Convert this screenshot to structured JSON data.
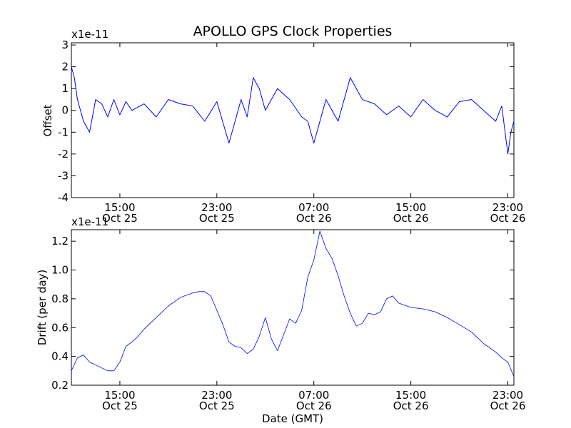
{
  "figure": {
    "title": "APOLLO GPS Clock Properties",
    "xlabel": "Date (GMT)"
  },
  "chart_data": [
    {
      "type": "line",
      "ylabel": "Offset",
      "y_multiplier_label": "x1e-11",
      "ylim": [
        -4,
        3.1
      ],
      "yticks": [
        -4,
        -3,
        -2,
        -1,
        0,
        1,
        2,
        3
      ],
      "xlim": [
        "2013-10-25T11:00",
        "2013-10-26T23:30"
      ],
      "xticks": [
        {
          "at": "2013-10-25T15:00",
          "time": "15:00",
          "date": "Oct 25"
        },
        {
          "at": "2013-10-25T23:00",
          "time": "23:00",
          "date": "Oct 25"
        },
        {
          "at": "2013-10-26T07:00",
          "time": "07:00",
          "date": "Oct 26"
        },
        {
          "at": "2013-10-26T15:00",
          "time": "15:00",
          "date": "Oct 26"
        },
        {
          "at": "2013-10-26T23:00",
          "time": "23:00",
          "date": "Oct 26"
        }
      ],
      "color": "#0000ff",
      "series": [
        {
          "x": [
            "2013-10-25T11:00",
            "2013-10-25T11:15",
            "2013-10-25T11:30",
            "2013-10-25T12:00",
            "2013-10-25T12:30",
            "2013-10-25T13:00",
            "2013-10-25T13:30",
            "2013-10-25T14:00",
            "2013-10-25T14:30",
            "2013-10-25T15:00",
            "2013-10-25T15:30",
            "2013-10-25T16:00",
            "2013-10-25T17:00",
            "2013-10-25T18:00",
            "2013-10-25T19:00",
            "2013-10-25T20:00",
            "2013-10-25T21:00",
            "2013-10-25T22:00",
            "2013-10-25T23:00",
            "2013-10-26T00:00",
            "2013-10-26T01:00",
            "2013-10-26T01:30",
            "2013-10-26T02:00",
            "2013-10-26T02:30",
            "2013-10-26T03:00",
            "2013-10-26T04:00",
            "2013-10-26T05:00",
            "2013-10-26T06:00",
            "2013-10-26T06:30",
            "2013-10-26T07:00",
            "2013-10-26T08:00",
            "2013-10-26T09:00",
            "2013-10-26T10:00",
            "2013-10-26T11:00",
            "2013-10-26T12:00",
            "2013-10-26T13:00",
            "2013-10-26T14:00",
            "2013-10-26T15:00",
            "2013-10-26T16:00",
            "2013-10-26T17:00",
            "2013-10-26T18:00",
            "2013-10-26T19:00",
            "2013-10-26T20:00",
            "2013-10-26T21:00",
            "2013-10-26T22:00",
            "2013-10-26T22:30",
            "2013-10-26T23:00",
            "2013-10-26T23:15",
            "2013-10-26T23:30"
          ],
          "y": [
            2.0,
            1.5,
            0.5,
            -0.5,
            -1.0,
            0.5,
            0.3,
            -0.3,
            0.5,
            -0.2,
            0.4,
            0.0,
            0.3,
            -0.3,
            0.5,
            0.3,
            0.2,
            -0.5,
            0.4,
            -1.5,
            0.5,
            -0.3,
            1.5,
            1.0,
            0.0,
            1.0,
            0.5,
            -0.3,
            -0.5,
            -1.5,
            0.5,
            -0.5,
            1.5,
            0.5,
            0.3,
            -0.2,
            0.2,
            -0.3,
            0.5,
            0.0,
            -0.3,
            0.4,
            0.5,
            0.0,
            -0.5,
            0.2,
            -2.0,
            -1.0,
            -0.5
          ]
        }
      ]
    },
    {
      "type": "line",
      "ylabel": "Drift (per day)",
      "y_multiplier_label": "x1e-11",
      "ylim": [
        0.2,
        1.28
      ],
      "yticks": [
        0.2,
        0.4,
        0.6,
        0.8,
        1.0,
        1.2
      ],
      "ytick_labels": [
        "0.2",
        "0.4",
        "0.6",
        "0.8",
        "1.0",
        "1.2"
      ],
      "xlim": [
        "2013-10-25T11:00",
        "2013-10-26T23:30"
      ],
      "xticks": [
        {
          "at": "2013-10-25T15:00",
          "time": "15:00",
          "date": "Oct 25"
        },
        {
          "at": "2013-10-25T23:00",
          "time": "23:00",
          "date": "Oct 25"
        },
        {
          "at": "2013-10-26T07:00",
          "time": "07:00",
          "date": "Oct 26"
        },
        {
          "at": "2013-10-26T15:00",
          "time": "15:00",
          "date": "Oct 26"
        },
        {
          "at": "2013-10-26T23:00",
          "time": "23:00",
          "date": "Oct 26"
        }
      ],
      "color": "#0000ff",
      "series": [
        {
          "x": [
            "2013-10-25T11:00",
            "2013-10-25T11:30",
            "2013-10-25T12:00",
            "2013-10-25T12:30",
            "2013-10-25T13:00",
            "2013-10-25T13:30",
            "2013-10-25T14:00",
            "2013-10-25T14:30",
            "2013-10-25T15:00",
            "2013-10-25T15:30",
            "2013-10-25T16:00",
            "2013-10-25T16:30",
            "2013-10-25T17:00",
            "2013-10-25T18:00",
            "2013-10-25T19:00",
            "2013-10-25T20:00",
            "2013-10-25T21:00",
            "2013-10-25T21:30",
            "2013-10-25T22:00",
            "2013-10-25T22:30",
            "2013-10-25T23:00",
            "2013-10-25T23:30",
            "2013-10-26T00:00",
            "2013-10-26T00:30",
            "2013-10-26T01:00",
            "2013-10-26T01:30",
            "2013-10-26T02:00",
            "2013-10-26T02:30",
            "2013-10-26T03:00",
            "2013-10-26T03:30",
            "2013-10-26T04:00",
            "2013-10-26T04:30",
            "2013-10-26T05:00",
            "2013-10-26T05:30",
            "2013-10-26T06:00",
            "2013-10-26T06:30",
            "2013-10-26T07:00",
            "2013-10-26T07:30",
            "2013-10-26T08:00",
            "2013-10-26T08:30",
            "2013-10-26T09:00",
            "2013-10-26T09:30",
            "2013-10-26T10:00",
            "2013-10-26T10:30",
            "2013-10-26T11:00",
            "2013-10-26T11:30",
            "2013-10-26T12:00",
            "2013-10-26T12:30",
            "2013-10-26T13:00",
            "2013-10-26T13:30",
            "2013-10-26T14:00",
            "2013-10-26T15:00",
            "2013-10-26T16:00",
            "2013-10-26T17:00",
            "2013-10-26T18:00",
            "2013-10-26T19:00",
            "2013-10-26T20:00",
            "2013-10-26T21:00",
            "2013-10-26T22:00",
            "2013-10-26T22:30",
            "2013-10-26T23:00",
            "2013-10-26T23:30"
          ],
          "y": [
            0.3,
            0.39,
            0.41,
            0.36,
            0.34,
            0.32,
            0.3,
            0.3,
            0.36,
            0.47,
            0.5,
            0.54,
            0.59,
            0.67,
            0.75,
            0.81,
            0.84,
            0.85,
            0.85,
            0.82,
            0.72,
            0.62,
            0.5,
            0.47,
            0.46,
            0.42,
            0.45,
            0.54,
            0.67,
            0.52,
            0.44,
            0.55,
            0.66,
            0.63,
            0.72,
            0.95,
            1.07,
            1.27,
            1.15,
            1.08,
            0.96,
            0.82,
            0.7,
            0.61,
            0.63,
            0.7,
            0.69,
            0.71,
            0.8,
            0.82,
            0.77,
            0.74,
            0.73,
            0.71,
            0.67,
            0.62,
            0.57,
            0.49,
            0.43,
            0.39,
            0.36,
            0.26
          ]
        }
      ]
    }
  ]
}
